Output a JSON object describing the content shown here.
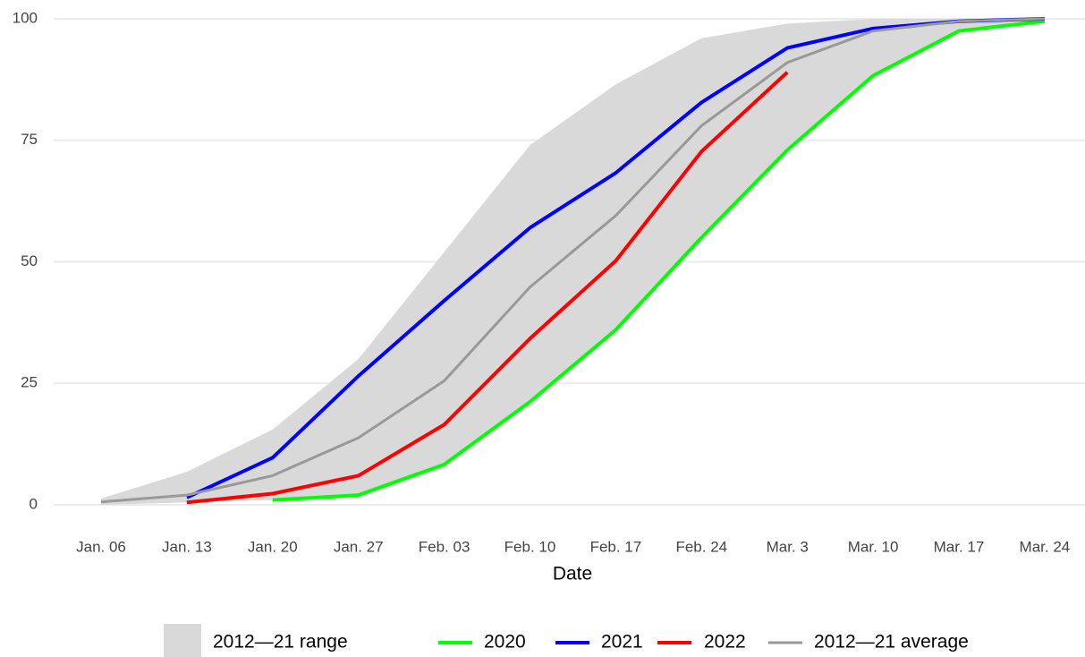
{
  "chart_data": {
    "type": "line",
    "x_label": "Date",
    "categories": [
      "Jan. 06",
      "Jan. 13",
      "Jan. 20",
      "Jan. 27",
      "Feb. 03",
      "Feb. 10",
      "Feb. 17",
      "Feb. 24",
      "Mar. 3",
      "Mar. 10",
      "Mar. 17",
      "Mar. 24"
    ],
    "ylim": [
      0,
      100
    ],
    "yticks": [
      0,
      25,
      50,
      75,
      100
    ],
    "grid": true,
    "legend": "bottom",
    "band": {
      "name": "2012—21 range",
      "color": "#d9d9d9",
      "upper": [
        1.3,
        6.8,
        15.5,
        30,
        52,
        74,
        86.5,
        96,
        99,
        100,
        100,
        100
      ],
      "lower": [
        0,
        0.5,
        1,
        2,
        8,
        21,
        36,
        55,
        73,
        88,
        97.5,
        99.5
      ]
    },
    "series": [
      {
        "name": "2020",
        "color": "#00ff00",
        "values": [
          null,
          null,
          1,
          2,
          8.3,
          21.2,
          36,
          55,
          73,
          88.3,
          97.5,
          99.5
        ]
      },
      {
        "name": "2021",
        "color": "#0000ff",
        "values": [
          null,
          1.5,
          9.7,
          26.5,
          42,
          57,
          68.3,
          82.8,
          94,
          98,
          99.5,
          100
        ]
      },
      {
        "name": "2022",
        "color": "#ff0000",
        "values": [
          null,
          0.5,
          2.3,
          6,
          16.5,
          34.2,
          50.2,
          72.7,
          89,
          null,
          null,
          null
        ]
      },
      {
        "name": "2012—21 average",
        "color": "#999999",
        "values": [
          0.6,
          2,
          6,
          13.8,
          25.5,
          44.8,
          59.5,
          78,
          91,
          97.5,
          99.5,
          100
        ]
      }
    ]
  }
}
